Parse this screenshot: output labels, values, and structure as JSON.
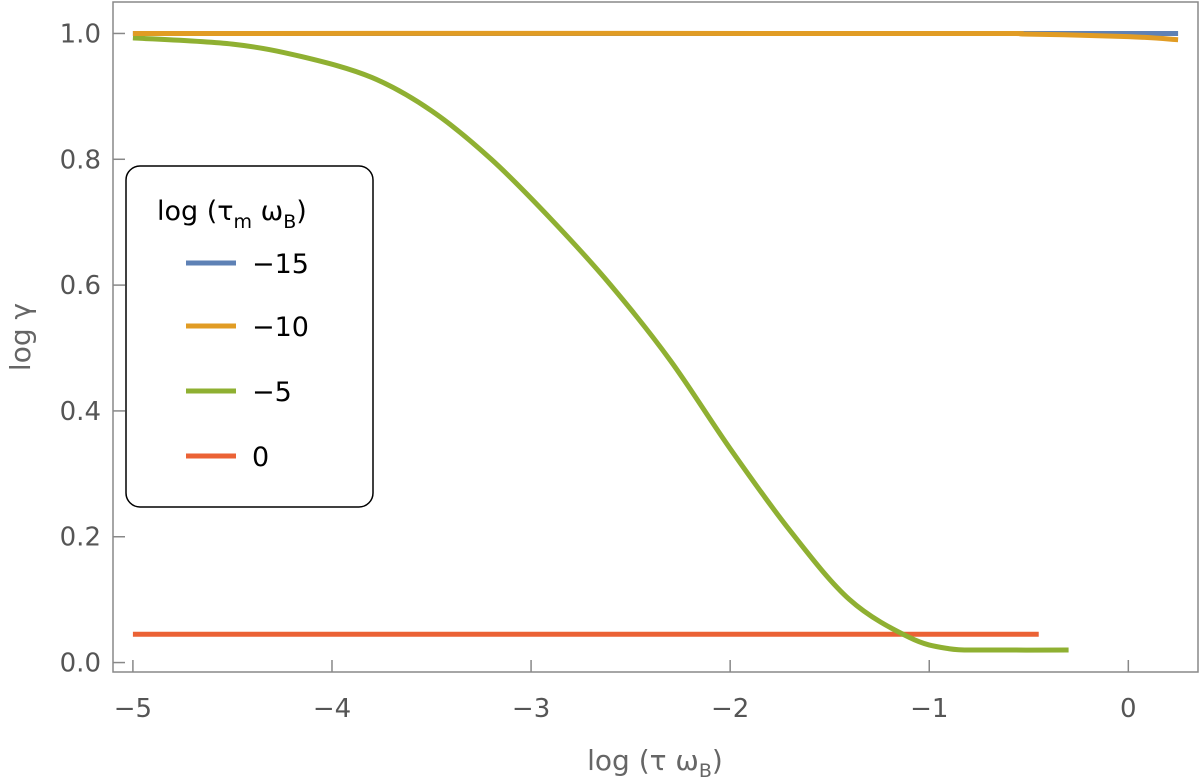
{
  "chart_data": {
    "type": "line",
    "xlabel": "log (τ ω",
    "xlabel_sub": "B",
    "ylabel": "log γ",
    "xlim": [
      -5.1,
      0.35
    ],
    "ylim": [
      -0.015,
      1.05
    ],
    "x_ticks": [
      {
        "value": -5,
        "label": "−5"
      },
      {
        "value": -4,
        "label": "−4"
      },
      {
        "value": -3,
        "label": "−3"
      },
      {
        "value": -2,
        "label": "−2"
      },
      {
        "value": -1,
        "label": "−1"
      },
      {
        "value": 0,
        "label": "0"
      }
    ],
    "y_ticks": [
      {
        "value": 0.0,
        "label": "0.0"
      },
      {
        "value": 0.2,
        "label": "0.2"
      },
      {
        "value": 0.4,
        "label": "0.4"
      },
      {
        "value": 0.6,
        "label": "0.6"
      },
      {
        "value": 0.8,
        "label": "0.8"
      },
      {
        "value": 1.0,
        "label": "1.0"
      }
    ],
    "grid": false,
    "legend": {
      "placement": "center-left",
      "title": "log (τ",
      "title_sub1": "m",
      "title_mid": " ω",
      "title_sub2": "B",
      "title_end": ")"
    },
    "series": [
      {
        "name": "−15",
        "color": "#5E81B5",
        "points": [
          [
            -5.0,
            1.0
          ],
          [
            0.25,
            1.0
          ]
        ]
      },
      {
        "name": "−10",
        "color": "#E19C24",
        "points": [
          [
            -5.0,
            1.0
          ],
          [
            -1.0,
            1.0
          ],
          [
            -0.5,
            0.999
          ],
          [
            0.0,
            0.995
          ],
          [
            0.25,
            0.99
          ]
        ]
      },
      {
        "name": "−5",
        "color": "#8FB032",
        "points": [
          [
            -5.0,
            0.993
          ],
          [
            -4.5,
            0.983
          ],
          [
            -4.15,
            0.963
          ],
          [
            -3.8,
            0.93
          ],
          [
            -3.5,
            0.877
          ],
          [
            -3.2,
            0.8
          ],
          [
            -2.9,
            0.705
          ],
          [
            -2.6,
            0.6
          ],
          [
            -2.3,
            0.48
          ],
          [
            -2.0,
            0.34
          ],
          [
            -1.7,
            0.21
          ],
          [
            -1.4,
            0.1
          ],
          [
            -1.1,
            0.04
          ],
          [
            -0.9,
            0.022
          ],
          [
            -0.7,
            0.02
          ],
          [
            -0.3,
            0.02
          ]
        ]
      },
      {
        "name": "0",
        "color": "#EB6235",
        "points": [
          [
            -5.0,
            0.045
          ],
          [
            -0.45,
            0.045
          ]
        ]
      }
    ]
  }
}
